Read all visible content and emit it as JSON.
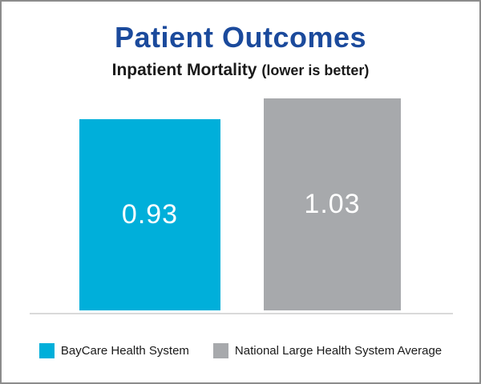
{
  "chart_data": {
    "type": "bar",
    "title": "Patient Outcomes",
    "subtitle": "Inpatient Mortality",
    "subtitle_note": "(lower is better)",
    "categories": [
      "BayCare Health System",
      "National Large Health System Average"
    ],
    "values": [
      0.93,
      1.03
    ],
    "value_labels": [
      "0.93",
      "1.03"
    ],
    "series_colors": [
      "#00afda",
      "#a7a9ac"
    ],
    "value_label_color": "#ffffff",
    "ylim": [
      0,
      1.03
    ],
    "gridlines": false,
    "axis_labels_shown": false,
    "legend_position": "bottom"
  },
  "colors": {
    "title_navy": "#1b4a9c",
    "subtitle_text": "#1a1a1a",
    "axis_line": "#d9d9d9",
    "frame_border": "#8c8c8c",
    "background": "#ffffff"
  }
}
